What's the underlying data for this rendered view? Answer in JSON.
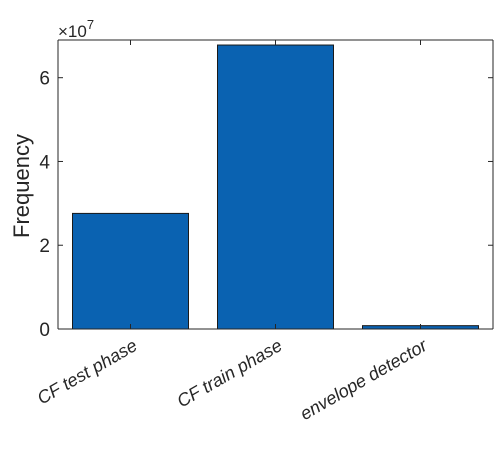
{
  "chart_data": {
    "type": "bar",
    "ylabel": "Frequency",
    "y_exponent_label": "×10",
    "y_exponent_power": "7",
    "y_exponent": 7,
    "categories": [
      "CF test phase",
      "CF train phase",
      "envelope detector"
    ],
    "values": [
      27600000,
      67800000,
      800000
    ],
    "ylim": [
      0,
      69000000
    ],
    "yticks": [
      0,
      2,
      4,
      6
    ],
    "ytick_labels": [
      "0",
      "2",
      "4",
      "6"
    ],
    "grid": false,
    "bar_color": "#0a62b1"
  }
}
